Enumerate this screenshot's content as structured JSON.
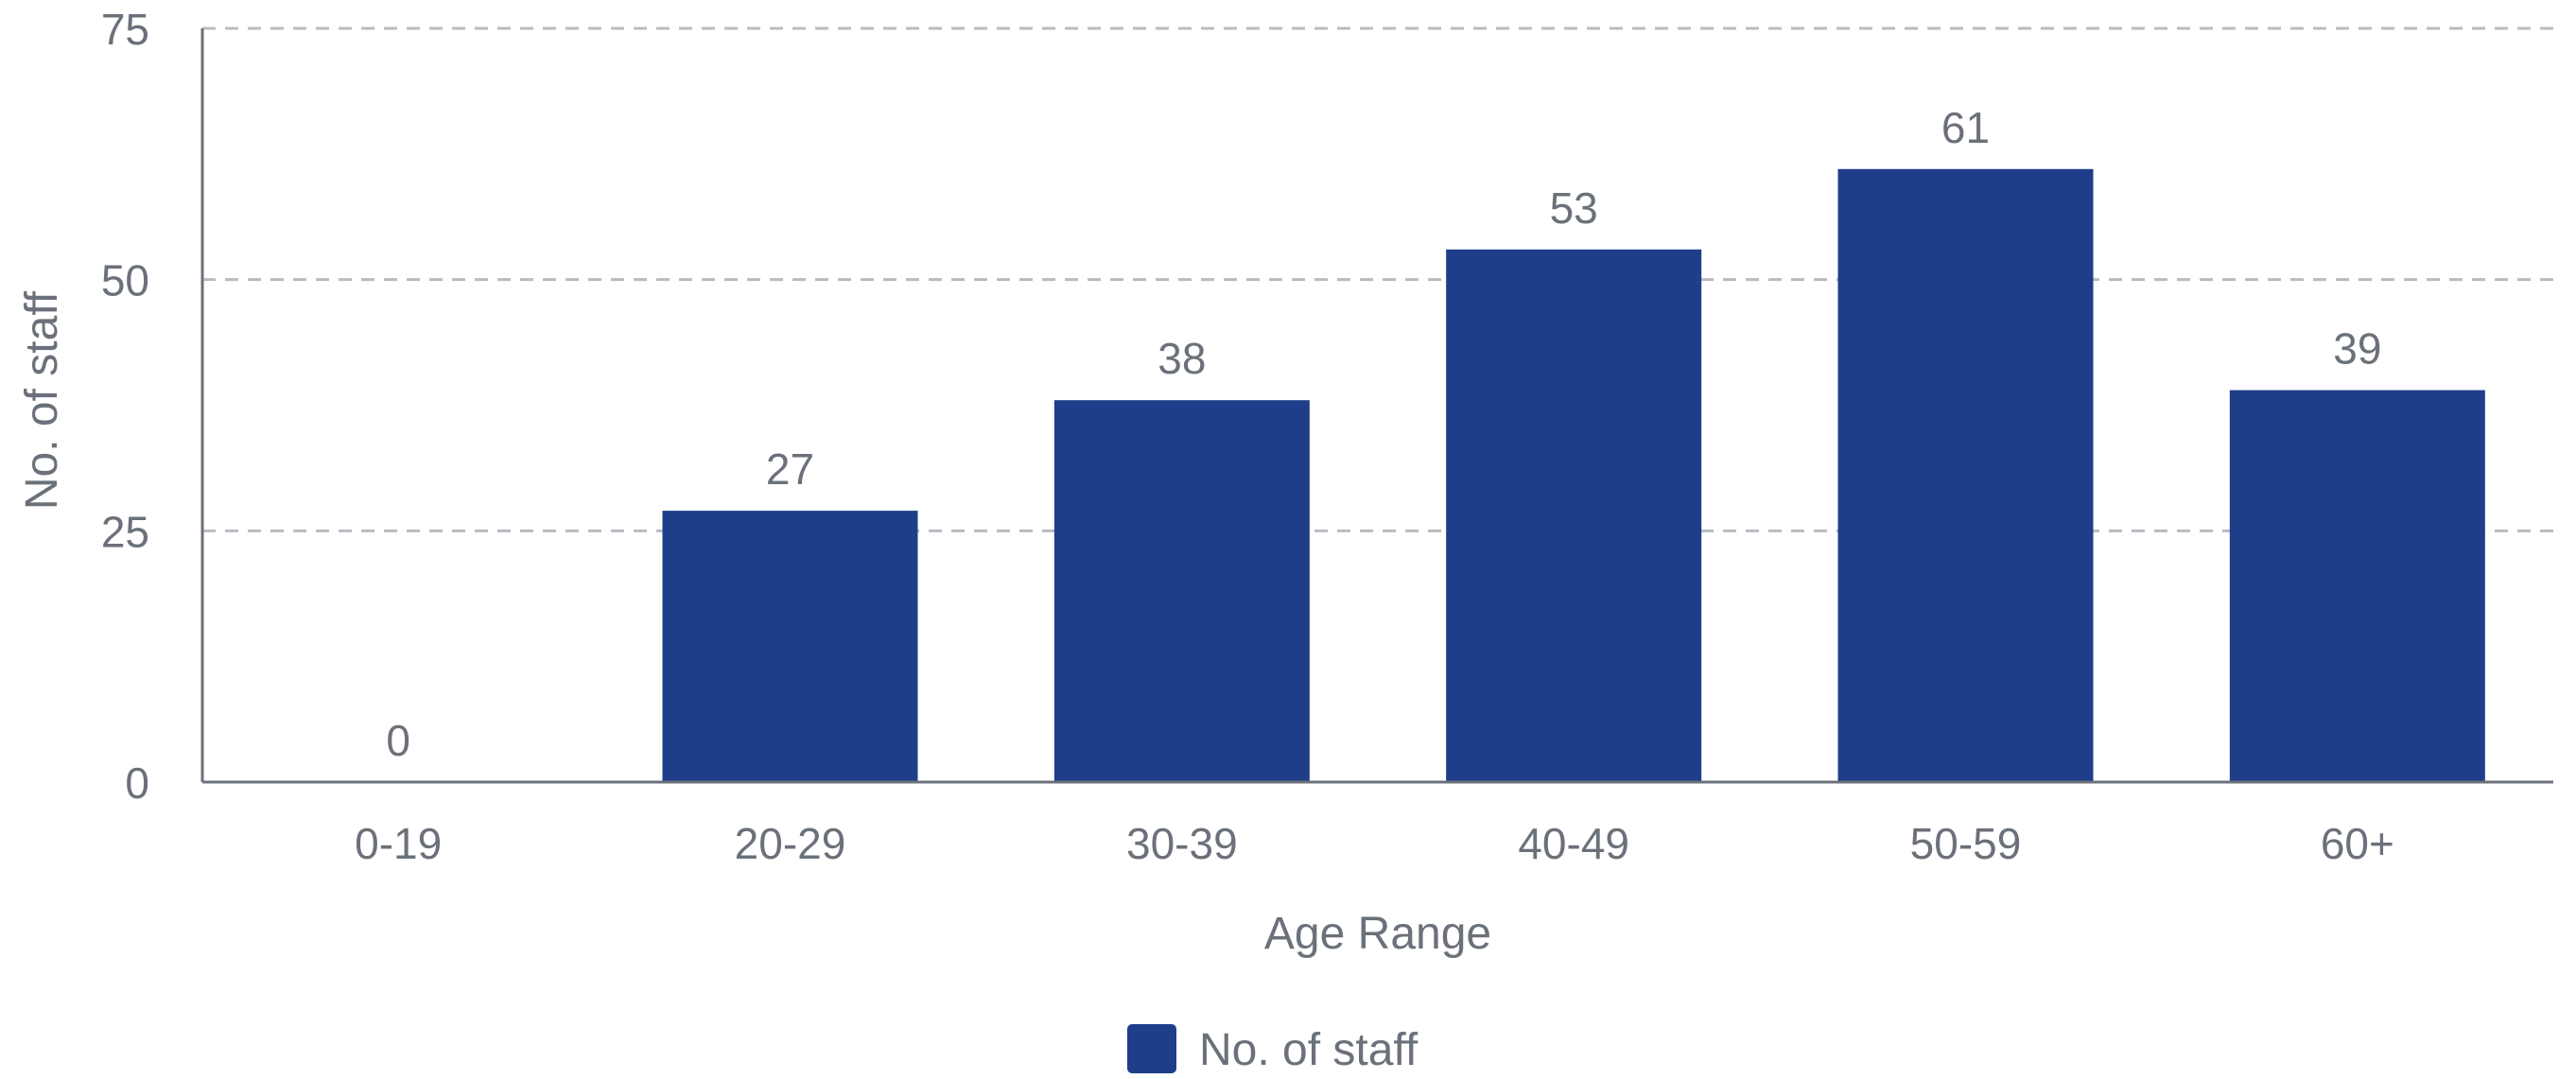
{
  "chart_data": {
    "type": "bar",
    "title": "",
    "xlabel": "Age Range",
    "ylabel": "No. of staff",
    "categories": [
      "0-19",
      "20-29",
      "30-39",
      "40-49",
      "50-59",
      "60+"
    ],
    "series": [
      {
        "name": "No. of staff",
        "values": [
          0,
          27,
          38,
          53,
          61,
          39
        ],
        "color": "#1f3e8a"
      }
    ],
    "ylim": [
      0,
      75
    ],
    "yticks": [
      0,
      25,
      50,
      75
    ],
    "grid": true,
    "data_labels": true,
    "legend_position": "bottom-center"
  },
  "colors": {
    "bar": "#1f3e8a",
    "text": "#6b717a",
    "axis": "#6b717a",
    "grid": "#b8bcc2"
  }
}
